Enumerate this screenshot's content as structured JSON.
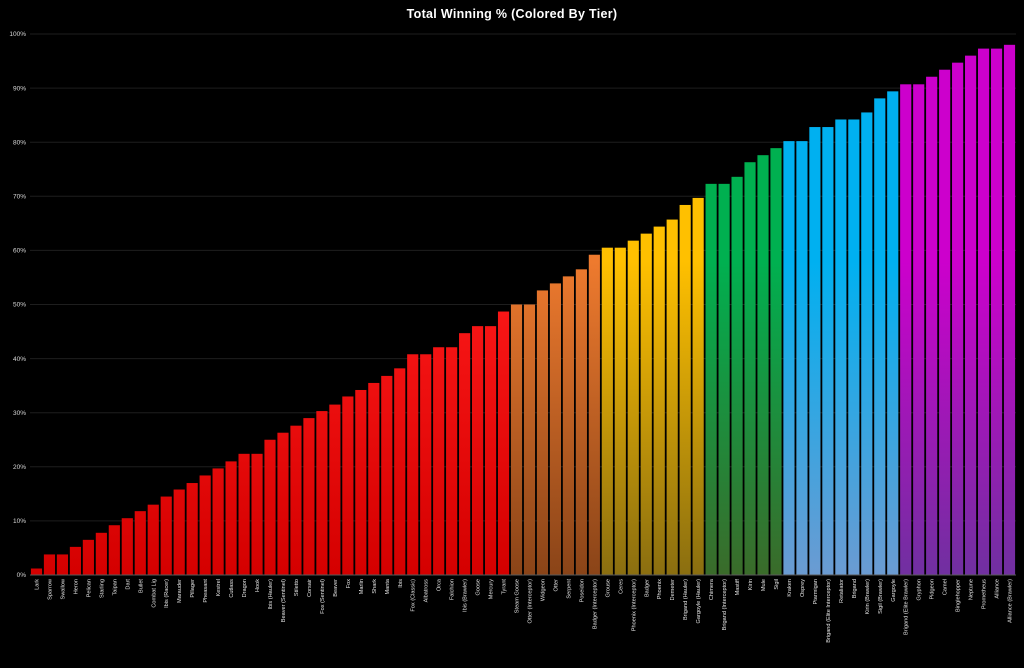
{
  "chart_data": {
    "type": "bar",
    "title": "Total  Winning  %  (Colored  By  Tier)",
    "xlabel": "",
    "ylabel": "",
    "ylim": [
      0,
      100
    ],
    "yticks": [
      "0%",
      "10%",
      "20%",
      "30%",
      "40%",
      "50%",
      "60%",
      "70%",
      "80%",
      "90%",
      "100%"
    ],
    "grid": true,
    "legend": "none",
    "tier_colors": [
      {
        "top": "#ff1a1a",
        "bottom": "#d40000"
      },
      {
        "top": "#ee7a2e",
        "bottom": "#8a4418"
      },
      {
        "top": "#ffc000",
        "bottom": "#8a6e10"
      },
      {
        "top": "#00b050",
        "bottom": "#3a6b2a"
      },
      {
        "top": "#00b0f0",
        "bottom": "#6b9bd2"
      },
      {
        "top": "#cc00cc",
        "bottom": "#7030a0"
      }
    ],
    "categories": [
      "Lark",
      "Sparrow",
      "Swallow",
      "Heron",
      "Pelican",
      "Starling",
      "Taipan",
      "Dart",
      "Bullet",
      "Combat Lig",
      "Ibis (Racer)",
      "Marauder",
      "Pillager",
      "Pheasant",
      "Kestrel",
      "Cutlass",
      "Dragon",
      "Hook",
      "Ibis (Hauler)",
      "Beaver (Sentinel)",
      "Stiletto",
      "Corsair",
      "Fox (Sentinel)",
      "Beaver",
      "Fox",
      "Marlin",
      "Shark",
      "Manta",
      "Ibis",
      "Fox (Classic)",
      "Albatross",
      "Orca",
      "Falchion",
      "Ibis (Brawler)",
      "Goose",
      "Mercury",
      "Tyrant",
      "Steam Goose",
      "Otter (Interceptor)",
      "Widgeon",
      "Otter",
      "Serpent",
      "Poseidon",
      "Badger (Interceptor)",
      "Grouse",
      "Ceres",
      "Phoenix (Interceptor)",
      "Badger",
      "Phoenix",
      "Demeter",
      "Brigand (Hauler)",
      "Gargoyle (Hauler)",
      "Chimera",
      "Brigand (Interceptor)",
      "Mastiff",
      "Kirin",
      "Mule",
      "Sigil",
      "Kraken",
      "Osprey",
      "Ptarmigan",
      "Brigand (Elite Interceptor)",
      "Retaliator",
      "Brigand",
      "Kirin (Brawler)",
      "Sigil (Brawler)",
      "Gargoyle",
      "Brigand (Elite Brawler)",
      "Gryphon",
      "Pidgeon",
      "Camel",
      "Binglehopper",
      "Neptune",
      "Prometheus",
      "Alliance",
      "Alliance (Brawler)"
    ],
    "values": [
      1.2,
      3.8,
      3.8,
      5.2,
      6.5,
      7.8,
      9.2,
      10.5,
      11.8,
      13.0,
      14.5,
      15.8,
      17.0,
      18.4,
      19.7,
      21.0,
      22.4,
      22.4,
      25.0,
      26.3,
      27.6,
      29.0,
      30.3,
      31.5,
      33.0,
      34.2,
      35.5,
      36.8,
      38.2,
      40.8,
      40.8,
      42.1,
      42.1,
      44.7,
      46.0,
      46.0,
      48.7,
      50.0,
      50.0,
      52.6,
      53.9,
      55.2,
      56.5,
      59.2,
      60.5,
      60.5,
      61.8,
      63.1,
      64.4,
      65.7,
      68.4,
      69.7,
      72.3,
      72.3,
      73.6,
      76.3,
      77.6,
      78.9,
      80.2,
      80.2,
      82.8,
      82.8,
      84.2,
      84.2,
      85.5,
      88.1,
      89.4,
      90.7,
      90.7,
      92.1,
      93.4,
      94.7,
      96.0,
      97.3,
      97.3,
      98.0
    ],
    "tiers": [
      0,
      0,
      0,
      0,
      0,
      0,
      0,
      0,
      0,
      0,
      0,
      0,
      0,
      0,
      0,
      0,
      0,
      0,
      0,
      0,
      0,
      0,
      0,
      0,
      0,
      0,
      0,
      0,
      0,
      0,
      0,
      0,
      0,
      0,
      0,
      0,
      0,
      1,
      1,
      1,
      1,
      1,
      1,
      1,
      2,
      2,
      2,
      2,
      2,
      2,
      2,
      2,
      3,
      3,
      3,
      3,
      3,
      3,
      4,
      4,
      4,
      4,
      4,
      4,
      4,
      4,
      4,
      5,
      5,
      5,
      5,
      5,
      5,
      5,
      5,
      5
    ]
  }
}
